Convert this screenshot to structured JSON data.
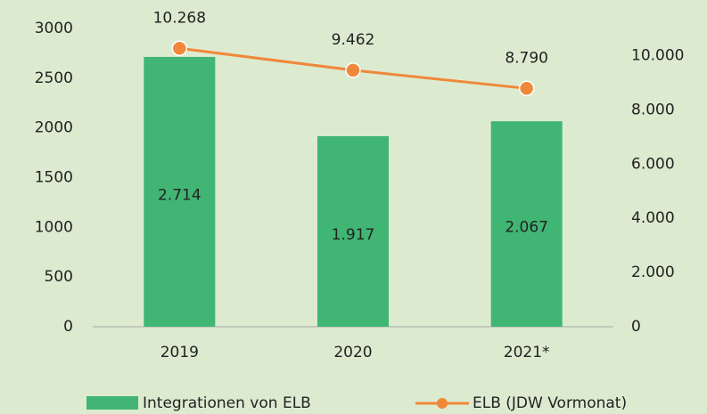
{
  "chart_data": {
    "type": "bar_line",
    "categories": [
      "2019",
      "2020",
      "2021*"
    ],
    "series": [
      {
        "name": "Integrationen von ELB",
        "color": "#41b574",
        "values": [
          2714,
          1917,
          2067
        ],
        "value_labels": [
          "2.714",
          "1.917",
          "2.067"
        ]
      },
      {
        "name": "ELB (JDW Vormonat)",
        "color": "#f0883a",
        "axis": "y2",
        "values": [
          10268,
          9462,
          8790
        ],
        "value_labels": [
          "10.268",
          "9.462",
          "8.790"
        ]
      }
    ],
    "ylim": [
      0,
      3000
    ],
    "yticks": [
      0,
      500,
      1000,
      1500,
      2000,
      2500,
      3000
    ],
    "y2lim": [
      0,
      11000
    ],
    "y2ticks": [
      0,
      {
        "value": 2000,
        "label": "2.000"
      },
      {
        "value": 4000,
        "label": "4.000"
      },
      {
        "value": 6000,
        "label": "6.000"
      },
      {
        "value": 8000,
        "label": "8.000"
      },
      {
        "value": 10000,
        "label": "10.000"
      }
    ],
    "grid": false
  }
}
